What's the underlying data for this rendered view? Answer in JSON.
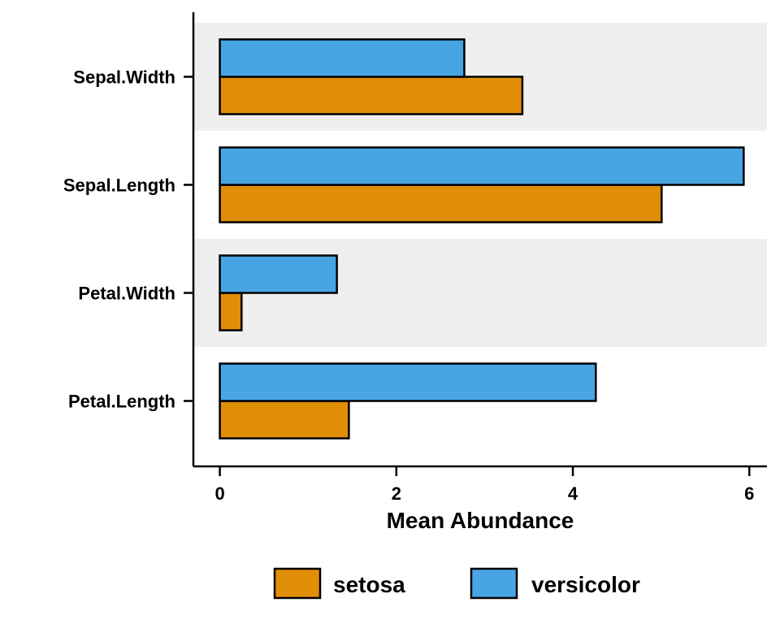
{
  "chart_data": {
    "type": "bar",
    "orientation": "horizontal",
    "title": "",
    "xlabel": "Mean Abundance",
    "ylabel": "",
    "categories": [
      "Petal.Length",
      "Petal.Width",
      "Sepal.Length",
      "Sepal.Width"
    ],
    "series": [
      {
        "name": "setosa",
        "color": "#E08E06",
        "values": [
          1.462,
          0.246,
          5.006,
          3.428
        ]
      },
      {
        "name": "versicolor",
        "color": "#48A5E4",
        "values": [
          4.26,
          1.326,
          5.936,
          2.77
        ]
      }
    ],
    "xlim": [
      -0.3,
      6.2
    ],
    "xticks": [
      0,
      2,
      4,
      6
    ],
    "grid": false,
    "band_color": "#EFEFEF",
    "legend_position": "bottom"
  }
}
